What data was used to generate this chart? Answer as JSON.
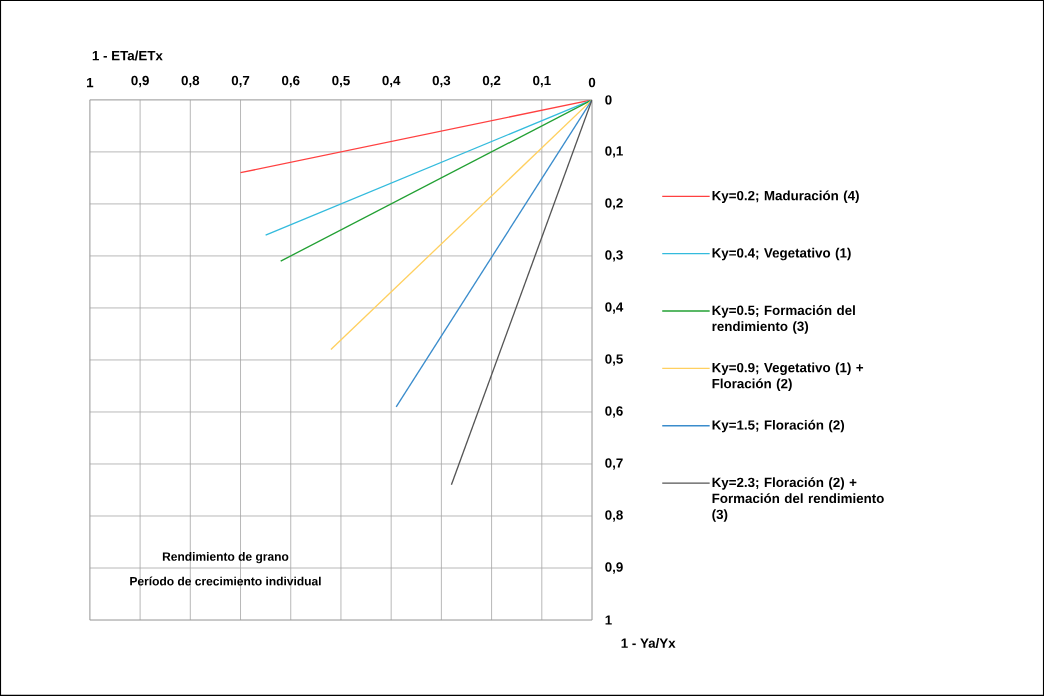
{
  "chart_data": {
    "type": "line",
    "xlabel": "1 - ETa/ETx",
    "ylabel": "1 - Ya/Yx",
    "xlim": [
      1,
      0
    ],
    "ylim": [
      1,
      0
    ],
    "xticks": [
      {
        "value": 1,
        "label": "1"
      },
      {
        "value": 0.9,
        "label": "0,9"
      },
      {
        "value": 0.8,
        "label": "0,8"
      },
      {
        "value": 0.7,
        "label": "0,7"
      },
      {
        "value": 0.6,
        "label": "0,6"
      },
      {
        "value": 0.5,
        "label": "0,5"
      },
      {
        "value": 0.4,
        "label": "0,4"
      },
      {
        "value": 0.3,
        "label": "0,3"
      },
      {
        "value": 0.2,
        "label": "0,2"
      },
      {
        "value": 0.1,
        "label": "0,1"
      },
      {
        "value": 0,
        "label": "0"
      }
    ],
    "yticks": [
      {
        "value": 0,
        "label": "0"
      },
      {
        "value": 0.1,
        "label": "0,1"
      },
      {
        "value": 0.2,
        "label": "0,2"
      },
      {
        "value": 0.3,
        "label": "0,3"
      },
      {
        "value": 0.4,
        "label": "0,4"
      },
      {
        "value": 0.5,
        "label": "0,5"
      },
      {
        "value": 0.6,
        "label": "0,6"
      },
      {
        "value": 0.7,
        "label": "0,7"
      },
      {
        "value": 0.8,
        "label": "0,8"
      },
      {
        "value": 0.9,
        "label": "0,9"
      },
      {
        "value": 1,
        "label": "1"
      }
    ],
    "grid": true,
    "legend": "right",
    "line_style": "solid",
    "annotations": [
      "Rendimiento de grano",
      "Período de crecimiento individual"
    ],
    "series": [
      {
        "name": "Ky=0.2; Maduración (4)",
        "color": "#ff4040",
        "x": [
          0,
          0.7
        ],
        "values": [
          0,
          0.14
        ]
      },
      {
        "name": "Ky=0.4; Vegetativo (1)",
        "color": "#33bbdd",
        "x": [
          0,
          0.65
        ],
        "values": [
          0,
          0.26
        ]
      },
      {
        "name": "Ky=0.5; Formación del rendimiento (3)",
        "color": "#22a033",
        "x": [
          0,
          0.62
        ],
        "values": [
          0,
          0.31
        ]
      },
      {
        "name": "Ky=0.9; Vegetativo (1) + Floración (2)",
        "color": "#ffd060",
        "x": [
          0,
          0.52
        ],
        "values": [
          0,
          0.48
        ]
      },
      {
        "name": "Ky=1.5; Floración (2)",
        "color": "#3a8ccc",
        "x": [
          0,
          0.39
        ],
        "values": [
          0,
          0.59
        ]
      },
      {
        "name": "Ky=2.3; Floración (2) + Formación del rendimiento (3)",
        "color": "#555555",
        "x": [
          0,
          0.28
        ],
        "values": [
          0,
          0.74
        ]
      }
    ]
  }
}
